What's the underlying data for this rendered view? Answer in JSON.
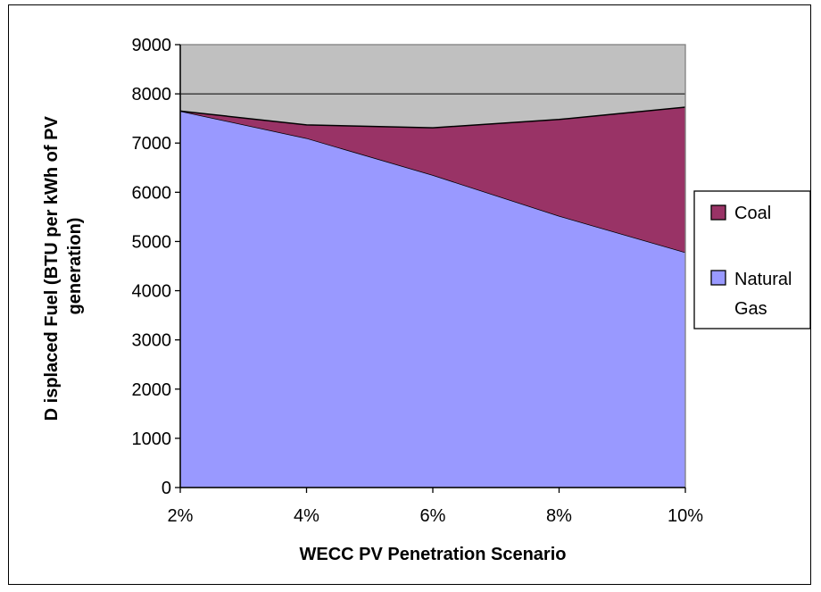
{
  "chart_data": {
    "type": "area",
    "stacked": true,
    "categories": [
      "2%",
      "4%",
      "6%",
      "8%",
      "10%"
    ],
    "series": [
      {
        "name": "Natural Gas",
        "values": [
          7650,
          7100,
          6350,
          5520,
          4780
        ],
        "color": "#9999ff"
      },
      {
        "name": "Coal",
        "values": [
          0,
          270,
          960,
          1960,
          2950
        ],
        "color": "#993366"
      }
    ],
    "title": "",
    "xlabel": "WECC PV Penetration Scenario",
    "ylabel": "D isplaced Fuel (BTU per kWh of PV generation)",
    "ylabel_lines": [
      "D isplaced Fuel (BTU per kWh of PV",
      "generation)"
    ],
    "ylim": [
      0,
      9000
    ],
    "yticks": [
      "0",
      "1000",
      "2000",
      "3000",
      "4000",
      "5000",
      "6000",
      "7000",
      "8000",
      "9000"
    ],
    "grid": true,
    "plot_background": "#c0c0c0",
    "legend": {
      "position": "right",
      "entries": [
        {
          "lines": [
            "Coal"
          ],
          "color": "#993366"
        },
        {
          "lines": [
            "Natural",
            "Gas"
          ],
          "color": "#9999ff"
        }
      ]
    }
  }
}
